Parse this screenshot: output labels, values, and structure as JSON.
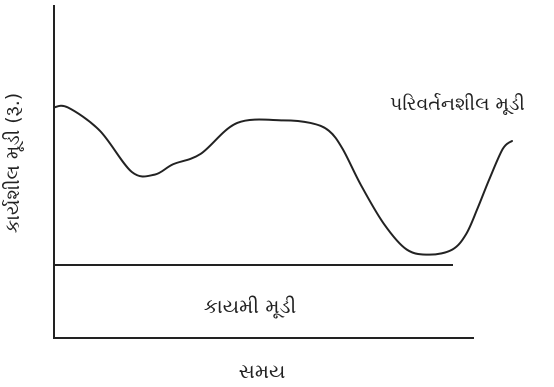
{
  "chart_data": {
    "type": "line",
    "xlabel": "સમય",
    "ylabel": "કાર્યશીલ મૂડી (રૂ.)",
    "series": [
      {
        "name": "પરિવર્તનશીલ મૂડી",
        "x": [
          0,
          0.03,
          0.1,
          0.17,
          0.22,
          0.26,
          0.32,
          0.4,
          0.5,
          0.56,
          0.6,
          0.63,
          0.67,
          0.72,
          0.77,
          0.82,
          0.87,
          0.9,
          0.925,
          0.95,
          0.98,
          1.0
        ],
        "values": [
          0.61,
          0.61,
          0.52,
          0.36,
          0.35,
          0.39,
          0.43,
          0.55,
          0.56,
          0.55,
          0.52,
          0.45,
          0.31,
          0.16,
          0.06,
          0.04,
          0.06,
          0.12,
          0.22,
          0.33,
          0.45,
          0.48
        ]
      }
    ],
    "annotations": {
      "fixed_capital_label": "કાયમી મૂડી",
      "variable_capital_label": "પરિવર્તનશીલ મૂડી"
    }
  }
}
